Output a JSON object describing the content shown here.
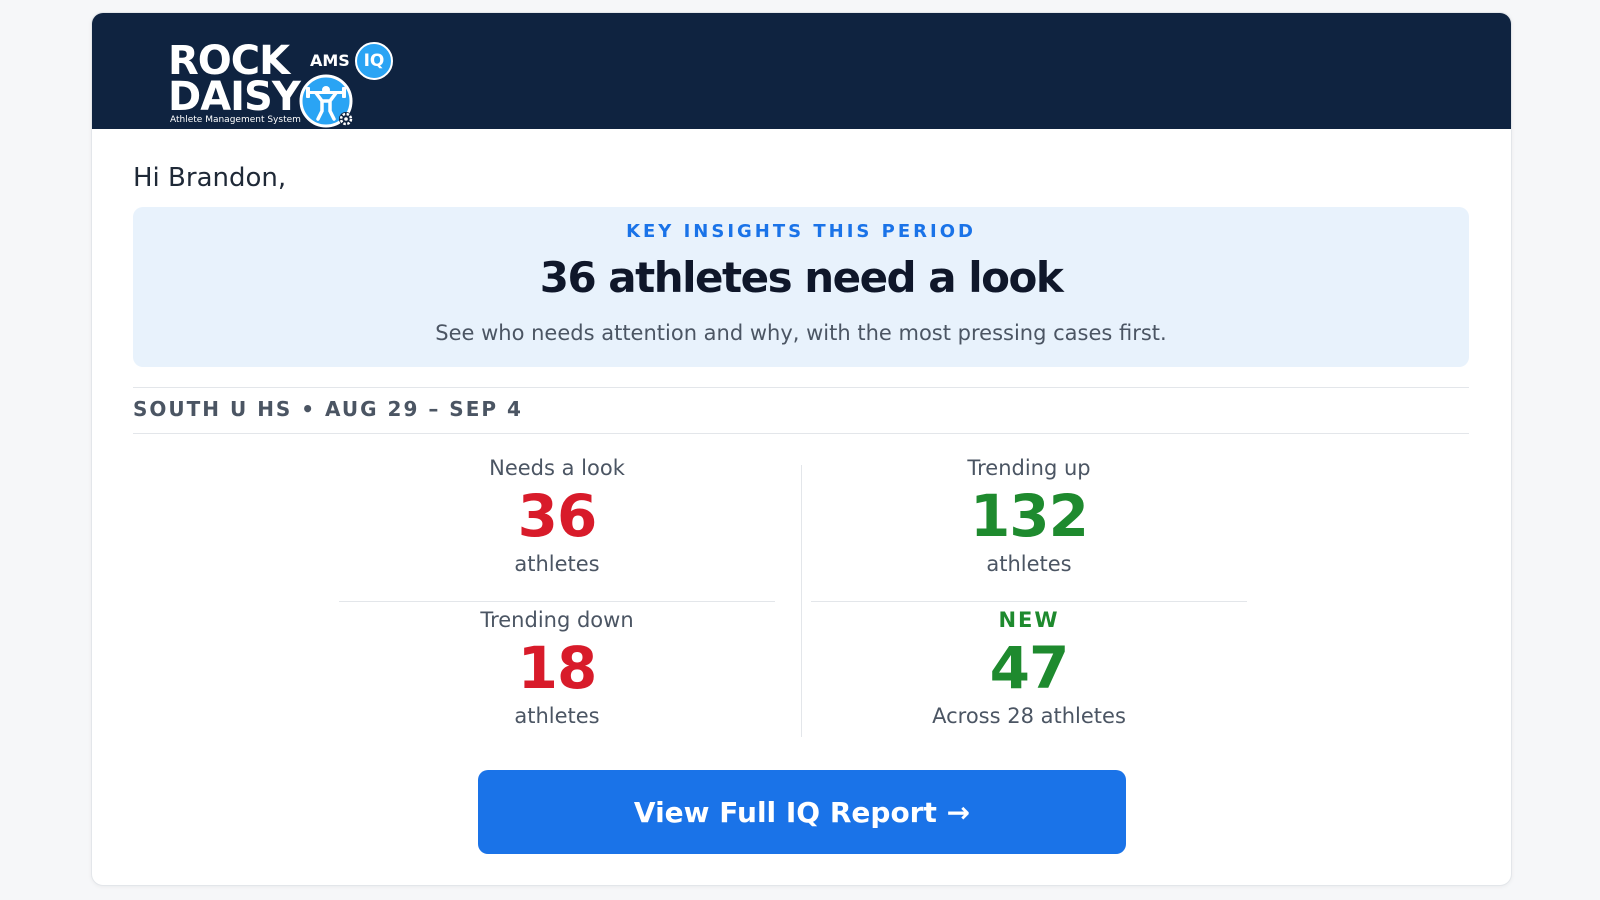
{
  "brand": {
    "name_line1": "ROCK",
    "name_line2": "DAISY",
    "tagline": "Athlete Management System",
    "product": "AMS",
    "badge": "IQ",
    "logo_icon": "weightlifter-gear-icon",
    "header_color": "#0f2340"
  },
  "greeting": "Hi Brandon,",
  "insights": {
    "eyebrow": "KEY INSIGHTS THIS PERIOD",
    "headline": "36 athletes need a look",
    "subtitle": "See who needs attention and why, with the most pressing cases first."
  },
  "section_label": "SOUTH U HS • AUG 29 – SEP 4",
  "stats": {
    "needs_look": {
      "label": "Needs a look",
      "value": "36",
      "sub": "athletes",
      "color": "#d81b2a"
    },
    "trending_up": {
      "label": "Trending up",
      "value": "132",
      "sub": "athletes",
      "color": "#1e8a2e"
    },
    "trending_down": {
      "label": "Trending down",
      "value": "18",
      "sub": "athletes",
      "color": "#d81b2a"
    },
    "new": {
      "label": "NEW",
      "value": "47",
      "sub": "Across 28 athletes",
      "color": "#1e8a2e"
    }
  },
  "cta": {
    "label": "View Full IQ Report →",
    "color": "#1a73e8"
  }
}
